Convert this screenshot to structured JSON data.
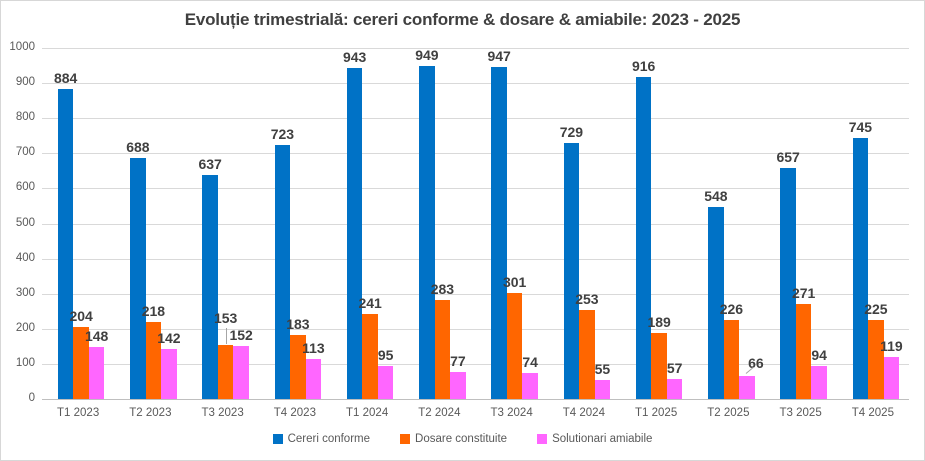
{
  "chart_data": {
    "type": "bar",
    "title": "Evoluție trimestrială: cereri conforme & dosare & amiabile: 2023 - 2025",
    "categories": [
      "T1 2023",
      "T2 2023",
      "T3 2023",
      "T4 2023",
      "T1 2024",
      "T2 2024",
      "T3 2024",
      "T4 2024",
      "T1 2025",
      "T2 2025",
      "T3 2025",
      "T4 2025"
    ],
    "series": [
      {
        "name": "Cereri conforme",
        "color": "#0072C6",
        "values": [
          884,
          688,
          637,
          723,
          943,
          949,
          947,
          729,
          916,
          548,
          657,
          745
        ]
      },
      {
        "name": "Dosare constituite",
        "color": "#FF6600",
        "values": [
          204,
          218,
          153,
          183,
          241,
          283,
          301,
          253,
          189,
          226,
          271,
          225
        ]
      },
      {
        "name": "Solutionari amiabile",
        "color": "#FF66FF",
        "values": [
          148,
          142,
          152,
          113,
          95,
          77,
          74,
          55,
          57,
          66,
          94,
          119
        ]
      }
    ],
    "xlabel": "",
    "ylabel": "",
    "ylim": [
      0,
      1000
    ],
    "yticks": [
      0,
      100,
      200,
      300,
      400,
      500,
      600,
      700,
      800,
      900,
      1000
    ],
    "grid": true,
    "legend_position": "bottom",
    "data_labels": true
  },
  "colors": {
    "grid": "#D9D9D9",
    "axis_line": "#BFBFBF",
    "tick_text": "#595959",
    "data_label_text": "#404040",
    "title_text": "#404040",
    "chart_border": "#D7D7D7"
  }
}
